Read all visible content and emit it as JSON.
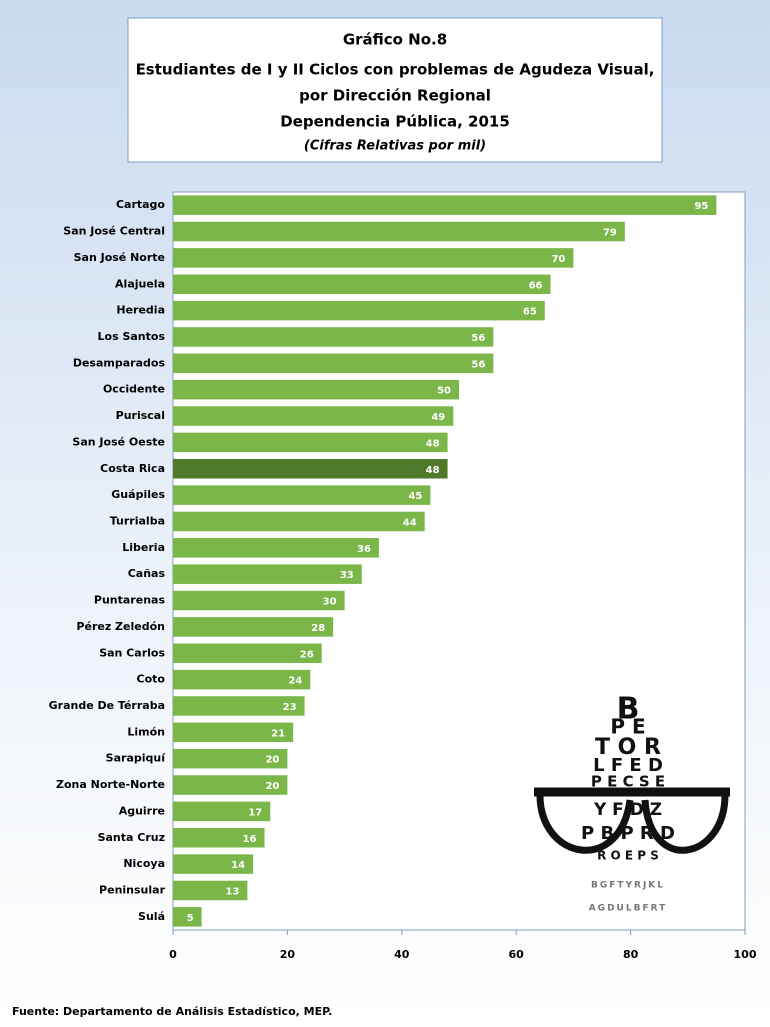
{
  "chart_data": {
    "type": "bar",
    "orientation": "horizontal",
    "title": [
      "Gráfico No.8",
      "Estudiantes de I y II Ciclos con problemas de Agudeza Visual,",
      "por Dirección Regional",
      "Dependencia Pública, 2015"
    ],
    "subtitle": "(Cifras Relativas por mil)",
    "categories": [
      "Cartago",
      "San José Central",
      "San José Norte",
      "Alajuela",
      "Heredia",
      "Los Santos",
      "Desamparados",
      "Occidente",
      "Puriscal",
      "San José Oeste",
      "Costa Rica",
      "Guápiles",
      "Turrialba",
      "Liberia",
      "Cañas",
      "Puntarenas",
      "Pérez Zeledón",
      "San Carlos",
      "Coto",
      "Grande De Térraba",
      "Limón",
      "Sarapiquí",
      "Zona Norte-Norte",
      "Aguirre",
      "Santa Cruz",
      "Nicoya",
      "Peninsular",
      "Sulá"
    ],
    "values": [
      95,
      79,
      70,
      66,
      65,
      56,
      56,
      50,
      49,
      48,
      48,
      45,
      44,
      36,
      33,
      30,
      28,
      26,
      24,
      23,
      21,
      20,
      20,
      17,
      16,
      14,
      13,
      5
    ],
    "colors": [
      "#7ab648",
      "#7ab648",
      "#7ab648",
      "#7ab648",
      "#7ab648",
      "#7ab648",
      "#7ab648",
      "#7ab648",
      "#7ab648",
      "#7ab648",
      "#4f7a2b",
      "#7ab648",
      "#7ab648",
      "#7ab648",
      "#7ab648",
      "#7ab648",
      "#7ab648",
      "#7ab648",
      "#7ab648",
      "#7ab648",
      "#7ab648",
      "#7ab648",
      "#7ab648",
      "#7ab648",
      "#7ab648",
      "#7ab648",
      "#7ab648",
      "#7ab648"
    ],
    "xlim": [
      0,
      100
    ],
    "xticks": [
      0,
      20,
      40,
      60,
      80,
      100
    ],
    "source": "Fuente: Departamento de Análisis Estadístico, MEP.",
    "illustration": [
      "B",
      "P  E",
      "T  O  R",
      "L  F  E  D",
      "P E C S E",
      "Y F  D Z",
      "P B  P R D",
      "R O E P S",
      "BGFTYRJKL",
      "AGDULBFRT"
    ]
  }
}
